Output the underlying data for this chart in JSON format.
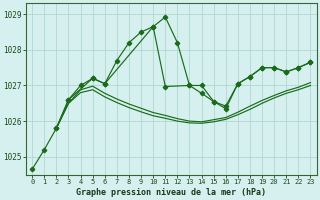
{
  "xlabel": "Graphe pression niveau de la mer (hPa)",
  "xlim": [
    -0.5,
    23.5
  ],
  "ylim": [
    1024.5,
    1029.3
  ],
  "yticks": [
    1025,
    1026,
    1027,
    1028,
    1029
  ],
  "xticks": [
    0,
    1,
    2,
    3,
    4,
    5,
    6,
    7,
    8,
    9,
    10,
    11,
    12,
    13,
    14,
    15,
    16,
    17,
    18,
    19,
    20,
    21,
    22,
    23
  ],
  "bg_color": "#d6f0f0",
  "line_color": "#1a6b1a",
  "grid_color": "#b0d8d0",
  "series": [
    {
      "x": [
        0,
        1,
        2,
        3,
        4,
        5,
        6,
        7,
        8,
        9,
        10,
        11,
        12,
        13,
        14,
        15,
        16,
        17,
        18,
        19,
        20,
        21,
        22,
        23
      ],
      "y": [
        1024.65,
        1025.2,
        1025.8,
        1026.6,
        1027.0,
        1027.2,
        1027.05,
        1027.7,
        1028.2,
        1028.5,
        1028.65,
        1028.92,
        1028.2,
        1027.0,
        1027.0,
        1026.55,
        1026.35,
        1027.05,
        1027.25,
        1027.5,
        1027.5,
        1027.38,
        1027.5,
        1027.65
      ],
      "marker_x": [
        0,
        1,
        2,
        3,
        4,
        5,
        6,
        7,
        8,
        9,
        10,
        11,
        12,
        13,
        14,
        15,
        16,
        17,
        18,
        19,
        20,
        21,
        22,
        23
      ],
      "marker_y": [
        1024.65,
        1025.2,
        1025.8,
        1026.6,
        1027.0,
        1027.2,
        1027.05,
        1027.7,
        1028.2,
        1028.5,
        1028.65,
        1028.92,
        1028.2,
        1027.0,
        1027.0,
        1026.55,
        1026.35,
        1027.05,
        1027.25,
        1027.5,
        1027.5,
        1027.38,
        1027.5,
        1027.65
      ]
    },
    {
      "x": [
        2,
        3,
        5,
        6,
        10,
        11,
        13,
        14,
        15,
        16,
        17,
        18,
        19,
        20,
        21,
        22,
        23
      ],
      "y": [
        1025.8,
        1026.6,
        1027.2,
        1027.05,
        1028.65,
        1026.97,
        1027.0,
        1026.78,
        1026.55,
        1026.42,
        1027.05,
        1027.25,
        1027.5,
        1027.5,
        1027.38,
        1027.5,
        1027.65
      ],
      "marker_x": [
        2,
        3,
        5,
        6,
        10,
        11,
        13,
        14,
        15,
        16,
        17,
        18,
        19,
        20,
        21,
        22,
        23
      ],
      "marker_y": [
        1025.8,
        1026.6,
        1027.2,
        1027.05,
        1028.65,
        1026.97,
        1027.0,
        1026.78,
        1026.55,
        1026.42,
        1027.05,
        1027.25,
        1027.5,
        1027.5,
        1027.38,
        1027.5,
        1027.65
      ]
    },
    {
      "x": [
        2,
        3,
        4,
        5,
        6,
        7,
        8,
        9,
        10,
        11,
        12,
        13,
        14,
        15,
        16,
        17,
        18,
        19,
        20,
        21,
        22,
        23
      ],
      "y": [
        1025.8,
        1026.5,
        1026.8,
        1026.88,
        1026.68,
        1026.52,
        1026.38,
        1026.26,
        1026.15,
        1026.08,
        1026.0,
        1025.95,
        1025.94,
        1025.98,
        1026.05,
        1026.18,
        1026.33,
        1026.5,
        1026.65,
        1026.78,
        1026.88,
        1027.0
      ],
      "marker_x": [],
      "marker_y": []
    },
    {
      "x": [
        2,
        3,
        4,
        5,
        6,
        7,
        8,
        9,
        10,
        11,
        12,
        13,
        14,
        15,
        16,
        17,
        18,
        19,
        20,
        21,
        22,
        23
      ],
      "y": [
        1025.8,
        1026.5,
        1026.88,
        1026.98,
        1026.78,
        1026.62,
        1026.48,
        1026.36,
        1026.24,
        1026.16,
        1026.07,
        1026.0,
        1025.98,
        1026.04,
        1026.1,
        1026.25,
        1026.42,
        1026.58,
        1026.72,
        1026.85,
        1026.95,
        1027.08
      ],
      "marker_x": [],
      "marker_y": []
    }
  ]
}
